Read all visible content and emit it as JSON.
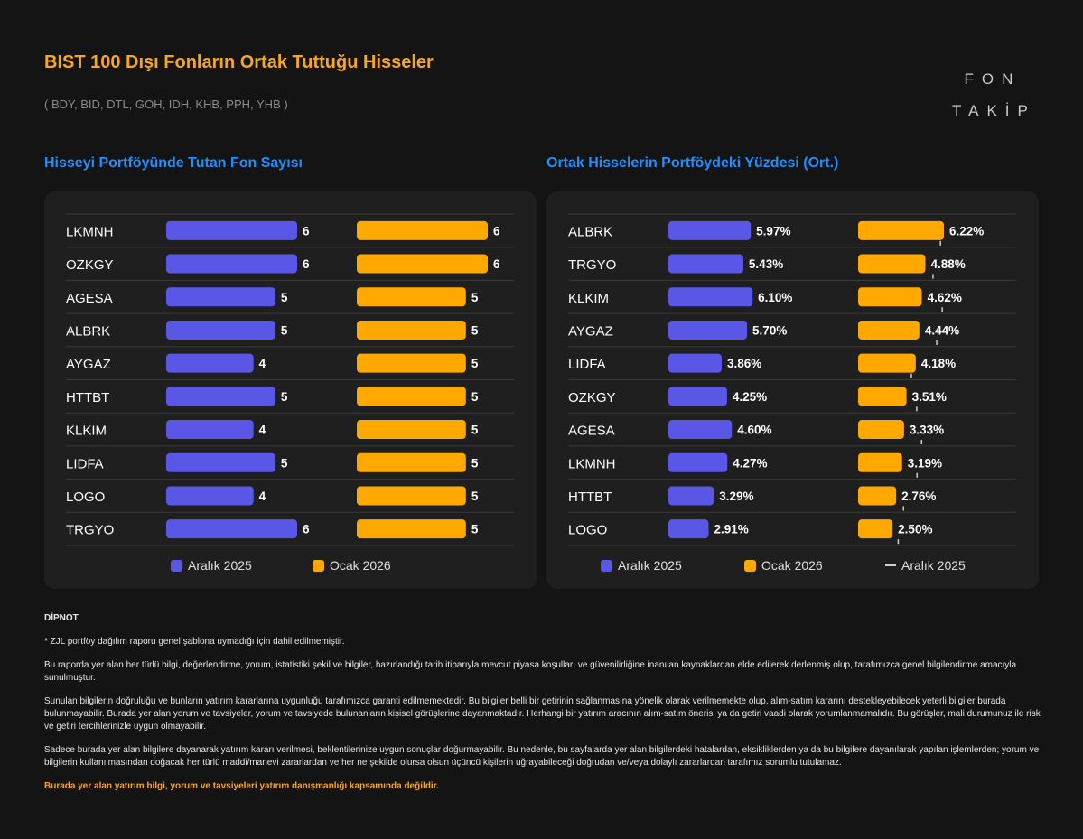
{
  "header": {
    "title": "BIST 100 Dışı Fonların Ortak Tuttuğu Hisseler",
    "subtitle": "( BDY, BID, DTL, GOH, IDH, KHB, PPH, YHB )",
    "logo_line1": "FON",
    "logo_line2": "TAKİP"
  },
  "colors": {
    "purple": "#5b57e6",
    "orange": "#ffa800",
    "accent_title": "#f5a623",
    "section_title": "#1e90ff"
  },
  "chart_data": [
    {
      "type": "bar",
      "title": "Hisseyi Portföyünde Tutan Fon Sayısı",
      "categories": [
        "LKMNH",
        "OZKGY",
        "AGESA",
        "ALBRK",
        "AYGAZ",
        "HTTBT",
        "KLKIM",
        "LIDFA",
        "LOGO",
        "TRGYO"
      ],
      "series": [
        {
          "name": "Aralık 2025",
          "values": [
            6,
            6,
            5,
            5,
            4,
            5,
            4,
            5,
            4,
            6
          ]
        },
        {
          "name": "Ocak 2026",
          "values": [
            6,
            6,
            5,
            5,
            5,
            5,
            5,
            5,
            5,
            5
          ]
        }
      ],
      "xlim": [
        0,
        6
      ],
      "legend": [
        "Aralık 2025",
        "Ocak 2026"
      ]
    },
    {
      "type": "bar",
      "title": "Ortak Hisselerin Portföydeki Yüzdesi (Ort.)",
      "categories": [
        "ALBRK",
        "TRGYO",
        "KLKIM",
        "AYGAZ",
        "LIDFA",
        "OZKGY",
        "AGESA",
        "LKMNH",
        "HTTBT",
        "LOGO"
      ],
      "series": [
        {
          "name": "Aralık 2025",
          "values": [
            5.97,
            5.43,
            6.1,
            5.7,
            3.86,
            4.25,
            4.6,
            4.27,
            3.29,
            2.91
          ],
          "labels": [
            "5.97%",
            "5.43%",
            "6.10%",
            "5.70%",
            "3.86%",
            "4.25%",
            "4.60%",
            "4.27%",
            "3.29%",
            "2.91%"
          ]
        },
        {
          "name": "Ocak 2026",
          "values": [
            6.22,
            4.88,
            4.62,
            4.44,
            4.18,
            3.51,
            3.33,
            3.19,
            2.76,
            2.5
          ],
          "labels": [
            "6.22%",
            "4.88%",
            "4.62%",
            "4.44%",
            "4.18%",
            "3.51%",
            "3.33%",
            "3.19%",
            "2.76%",
            "2.50%"
          ]
        }
      ],
      "reference_marker": {
        "name": "Aralık 2025",
        "applies_to": "Ocak 2026",
        "values": [
          5.97,
          5.43,
          6.1,
          5.7,
          3.86,
          4.25,
          4.6,
          4.27,
          3.29,
          2.91
        ]
      },
      "xlim": [
        0,
        6.22
      ],
      "legend": [
        "Aralık 2025",
        "Ocak 2026",
        "Aralık 2025"
      ]
    }
  ],
  "footnote": {
    "heading": "DİPNOT",
    "note1": "* ZJL portföy dağılım raporu genel şablona uymadığı için dahil edilmemiştir.",
    "para1": "Bu raporda yer alan her türlü bilgi, değerlendirme, yorum, istatistiki şekil ve bilgiler, hazırlandığı tarih itibarıyla mevcut piyasa koşulları ve güvenilirliğine inanılan kaynaklardan elde edilerek derlenmiş olup, tarafımızca genel bilgilendirme amacıyla sunulmuştur.",
    "para2": "Sunulan bilgilerin doğruluğu ve bunların yatırım kararlarına uygunluğu tarafımızca garanti edilmemektedir. Bu bilgiler belli bir getirinin sağlanmasına yönelik olarak verilmemekte olup, alım-satım kararını destekleyebilecek yeterli bilgiler burada bulunmayabilir. Burada yer alan yorum ve tavsiyeler, yorum ve tavsiyede bulunanların kişisel görüşlerine dayanmaktadır. Herhangi bir yatırım aracının alım-satım önerisi ya da getiri vaadi olarak yorumlanmamalıdır. Bu görüşler, mali durumunuz ile risk ve getiri tercihlerinizle uygun olmayabilir.",
    "para3": "Sadece burada yer alan bilgilere dayanarak yatırım kararı verilmesi, beklentilerinize uygun sonuçlar doğurmayabilir. Bu nedenle, bu sayfalarda yer alan bilgilerdeki hatalardan, eksikliklerden ya da bu bilgilere dayanılarak yapılan işlemlerden; yorum ve bilgilerin kullanılmasından doğacak her türlü maddi/manevi zararlardan ve her ne şekilde olursa olsun üçüncü kişilerin uğrayabileceği doğrudan ve/veya dolaylı zararlardan tarafımız sorumlu tutulamaz.",
    "disclaimer": "Burada yer alan yatırım bilgi, yorum ve tavsiyeleri yatırım danışmanlığı kapsamında değildir."
  }
}
